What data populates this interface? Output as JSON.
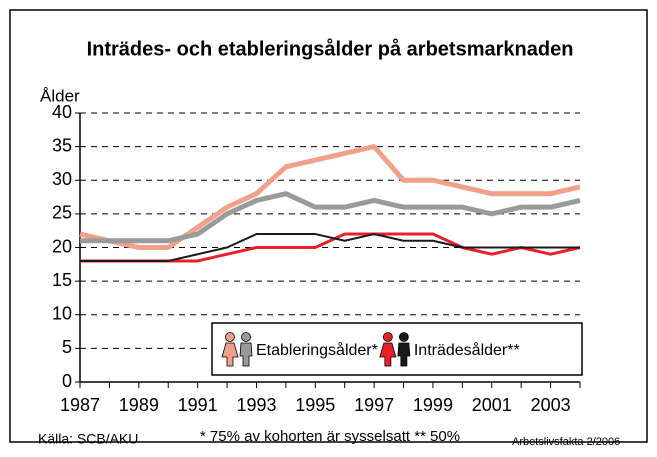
{
  "chart_data": {
    "type": "line",
    "title": "Inträdes- och etableringsålder på arbetsmarknaden",
    "y_label": "Ålder",
    "x": [
      1987,
      1988,
      1989,
      1990,
      1991,
      1992,
      1993,
      1994,
      1995,
      1996,
      1997,
      1998,
      1999,
      2000,
      2001,
      2002,
      2003,
      2004
    ],
    "xlim": [
      1987,
      2004
    ],
    "xticks": [
      1987,
      1989,
      1991,
      1993,
      1995,
      1997,
      1999,
      2001,
      2003
    ],
    "ylim": [
      0,
      40
    ],
    "yticks": [
      0,
      5,
      10,
      15,
      20,
      25,
      30,
      35,
      40
    ],
    "grid": true,
    "series": [
      {
        "name": "Etableringsålder*",
        "lines": [
          {
            "color": "#f2a08a",
            "values": [
              22,
              21,
              20,
              20,
              23,
              26,
              28,
              32,
              33,
              34,
              35,
              30,
              30,
              29,
              28,
              28,
              28,
              29
            ]
          },
          {
            "color": "#9a9a9a",
            "values": [
              21,
              21,
              21,
              21,
              22,
              25,
              27,
              28,
              26,
              26,
              27,
              26,
              26,
              26,
              25,
              26,
              26,
              27
            ]
          }
        ]
      },
      {
        "name": "Inträdesålder**",
        "lines": [
          {
            "color": "#e8202a",
            "values": [
              18,
              18,
              18,
              18,
              18,
              19,
              20,
              20,
              20,
              22,
              22,
              22,
              22,
              20,
              19,
              20,
              19,
              20
            ]
          },
          {
            "color": "#1a1a1a",
            "values": [
              18,
              18,
              18,
              18,
              19,
              20,
              22,
              22,
              22,
              21,
              22,
              21,
              21,
              20,
              20,
              20,
              20,
              20
            ]
          }
        ]
      }
    ],
    "source": "Källa: SCB/AKU",
    "footnote": "* 75% av kohorten är sysselsatt ** 50%",
    "publisher": "Arbetslivsfakta 2/2006"
  }
}
